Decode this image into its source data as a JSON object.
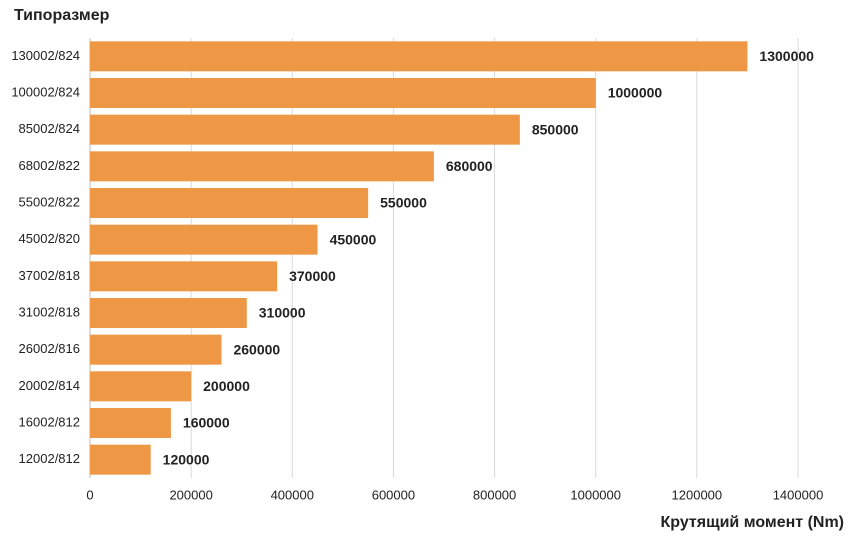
{
  "chart_data": {
    "type": "bar",
    "orientation": "horizontal",
    "y_axis_title": "Типоразмер",
    "x_axis_title": "Крутящий момент (Nm)",
    "categories": [
      "130002/824",
      "100002/824",
      "85002/824",
      "68002/822",
      "55002/822",
      "45002/820",
      "37002/818",
      "31002/818",
      "26002/816",
      "20002/814",
      "16002/812",
      "12002/812"
    ],
    "values": [
      1300000,
      1000000,
      850000,
      680000,
      550000,
      450000,
      370000,
      310000,
      260000,
      200000,
      160000,
      120000
    ],
    "color": "#ee9745",
    "xlim": [
      0,
      1400000
    ],
    "xticks": [
      0,
      200000,
      400000,
      600000,
      800000,
      1000000,
      1200000,
      1400000
    ],
    "grid": true
  }
}
